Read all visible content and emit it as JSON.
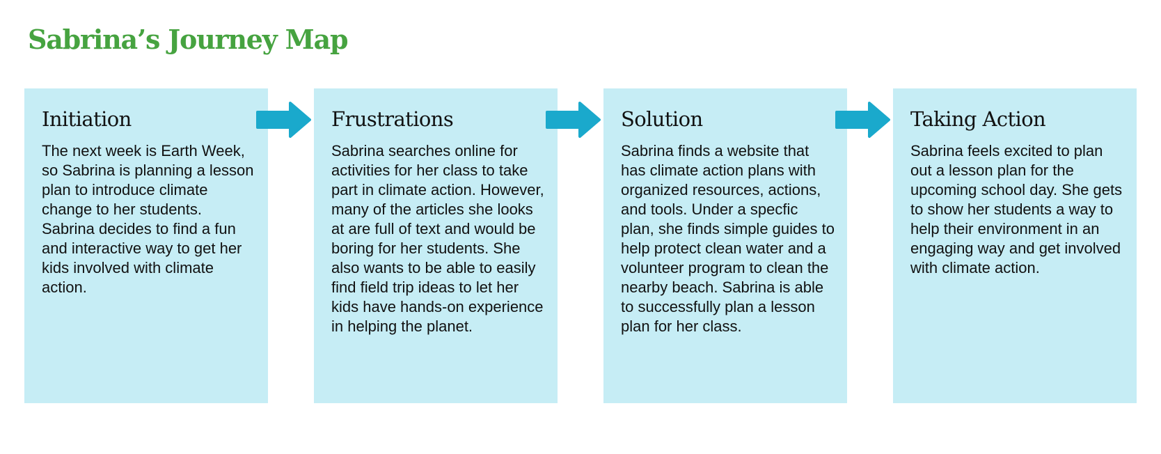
{
  "title": "Sabrina’s Journey Map",
  "colors": {
    "title": "#46a340",
    "card_background": "#c6edf5",
    "arrow": "#1aa9cc",
    "text": "#111111"
  },
  "stages": [
    {
      "heading": "Initiation",
      "text": "The next week is Earth Week, so Sabrina is planning a lesson plan to introduce climate change to her students. Sabrina decides to find a fun and interactive way to get her kids involved with climate action."
    },
    {
      "heading": "Frustrations",
      "text": "Sabrina searches online for activities for her class to take part in climate action. However, many of the articles she looks at are full of text and would be boring for her students. She also wants to be able to easily find field trip ideas to let her kids have hands-on experience in helping the planet."
    },
    {
      "heading": "Solution",
      "text": "Sabrina finds a website that has climate action plans with organized resources, actions, and tools. Under a specfic plan, she finds simple guides to help protect clean water and a volunteer program to clean the nearby beach. Sabrina is able to successfully plan a lesson plan for her class."
    },
    {
      "heading": "Taking Action",
      "text": "Sabrina feels excited to plan out a lesson plan for the upcoming school day. She gets to show her students a way to help their environment in an engaging way and get involved with climate action."
    }
  ],
  "connectors": [
    {
      "icon": "arrow-right-icon"
    },
    {
      "icon": "arrow-right-icon"
    },
    {
      "icon": "arrow-right-icon"
    }
  ]
}
